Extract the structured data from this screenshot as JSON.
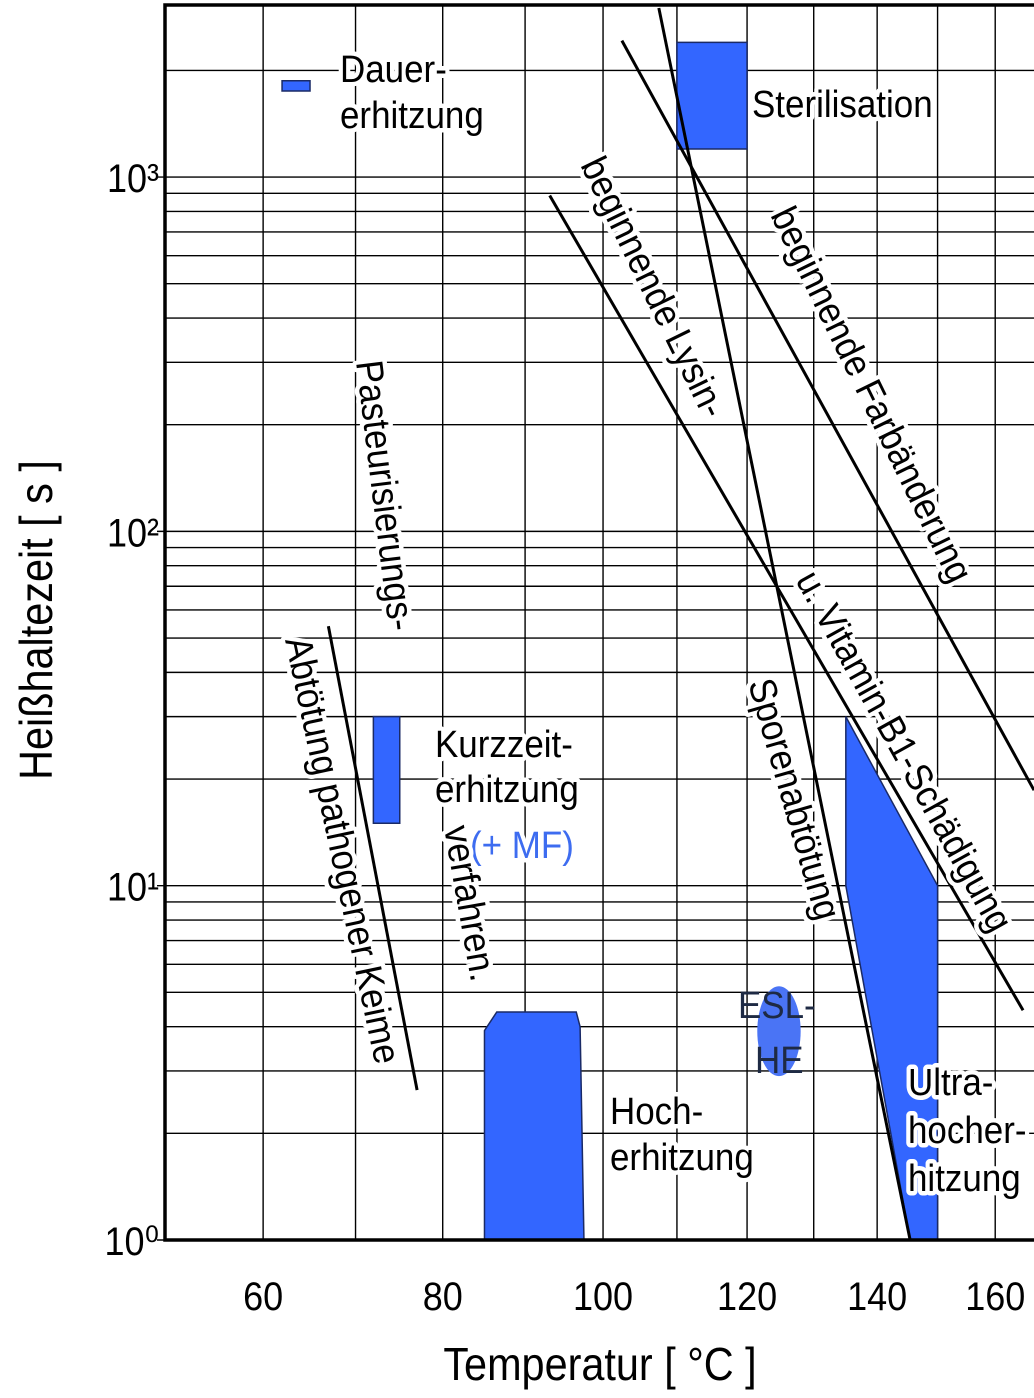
{
  "chart_data": {
    "type": "line",
    "xlabel": "Temperatur  [ °C ]",
    "ylabel": "Heißhaltezeit  [ s ]",
    "xscale": "reciprocal-kelvin",
    "yscale": "log",
    "grid": true,
    "xlim": [
      50,
      167
    ],
    "ylim": [
      1,
      3000
    ],
    "xticks": [
      60,
      80,
      100,
      120,
      140,
      160
    ],
    "xminor": [
      70,
      90,
      110,
      130,
      150
    ],
    "yticks": [
      {
        "value": 1,
        "label": "10⁰"
      },
      {
        "value": 10,
        "label": "10¹"
      },
      {
        "value": 100,
        "label": "10²"
      },
      {
        "value": 1000,
        "label": "10³"
      }
    ],
    "yminor": [
      2,
      3,
      4,
      5,
      6,
      7,
      8,
      9,
      20,
      30,
      40,
      50,
      60,
      70,
      80,
      90,
      200,
      300,
      400,
      500,
      600,
      700,
      800,
      900,
      2000
    ],
    "regions": [
      {
        "shape": "polygon",
        "color": "#3366ff",
        "x": [
          62,
          65,
          65,
          62
        ],
        "y": [
          1750,
          1750,
          1870,
          1870
        ],
        "label": [
          "Dauer-",
          "erhitzung"
        ]
      },
      {
        "shape": "polygon",
        "color": "#3366ff",
        "x": [
          110,
          120,
          120,
          110
        ],
        "y": [
          1200,
          1200,
          2400,
          2400
        ],
        "label": [
          "Sterilisation"
        ]
      },
      {
        "shape": "polygon",
        "color": "#3366ff",
        "x": [
          72,
          75,
          75,
          72
        ],
        "y": [
          15,
          15,
          30,
          30
        ],
        "label": [
          "Kurzzeit-",
          "erhitzung",
          "(+ MF)"
        ]
      },
      {
        "shape": "polygon",
        "color": "#3366ff",
        "x": [
          85,
          85,
          86.5,
          96.5,
          97,
          97.5
        ],
        "y": [
          1,
          3.9,
          4.4,
          4.4,
          4,
          1
        ],
        "label": [
          "Hoch-",
          "erhitzung"
        ]
      },
      {
        "shape": "ellipse",
        "color": "#4a74f5",
        "x": [
          121.5,
          128
        ],
        "y": [
          2.9,
          5.2
        ],
        "label": [
          "ESL-",
          "HE"
        ]
      },
      {
        "shape": "polygon",
        "color": "#3366ff",
        "x": [
          135,
          150,
          150,
          145.4,
          135
        ],
        "y": [
          30,
          10,
          1,
          1,
          10
        ],
        "label": [
          "Ultra-",
          "hocher-",
          "hitzung"
        ]
      }
    ],
    "lines": [
      {
        "color": "#000000",
        "x": [
          67,
          77
        ],
        "y": [
          54,
          2.65
        ],
        "label": [
          "Abtötung pathogener Keime"
        ]
      },
      {
        "color": "#000000",
        "x": [
          93.1,
          165
        ],
        "y": [
          887,
          4.45
        ],
        "label": [
          "beginnende Lysin-",
          "u. Vitamin-B1-Schädigung"
        ]
      },
      {
        "color": "#000000",
        "x": [
          102.5,
          167
        ],
        "y": [
          2427,
          18.6
        ],
        "label": [
          "beginnende Farbänderung"
        ]
      },
      {
        "color": "#000000",
        "x": [
          107.5,
          145.4
        ],
        "y": [
          3000,
          1
        ],
        "label": [
          "Sporenabtötung"
        ]
      }
    ],
    "annotations": [
      "Pasteurisierungs-",
      "verfahren."
    ]
  }
}
